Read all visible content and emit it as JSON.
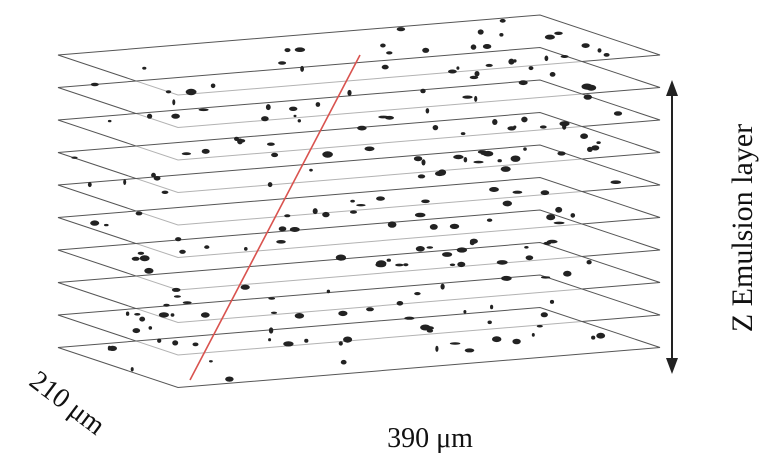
{
  "labels": {
    "vertical": "Z Emulsion layer",
    "depth": "210 μm",
    "width": "390 μm"
  }
}
